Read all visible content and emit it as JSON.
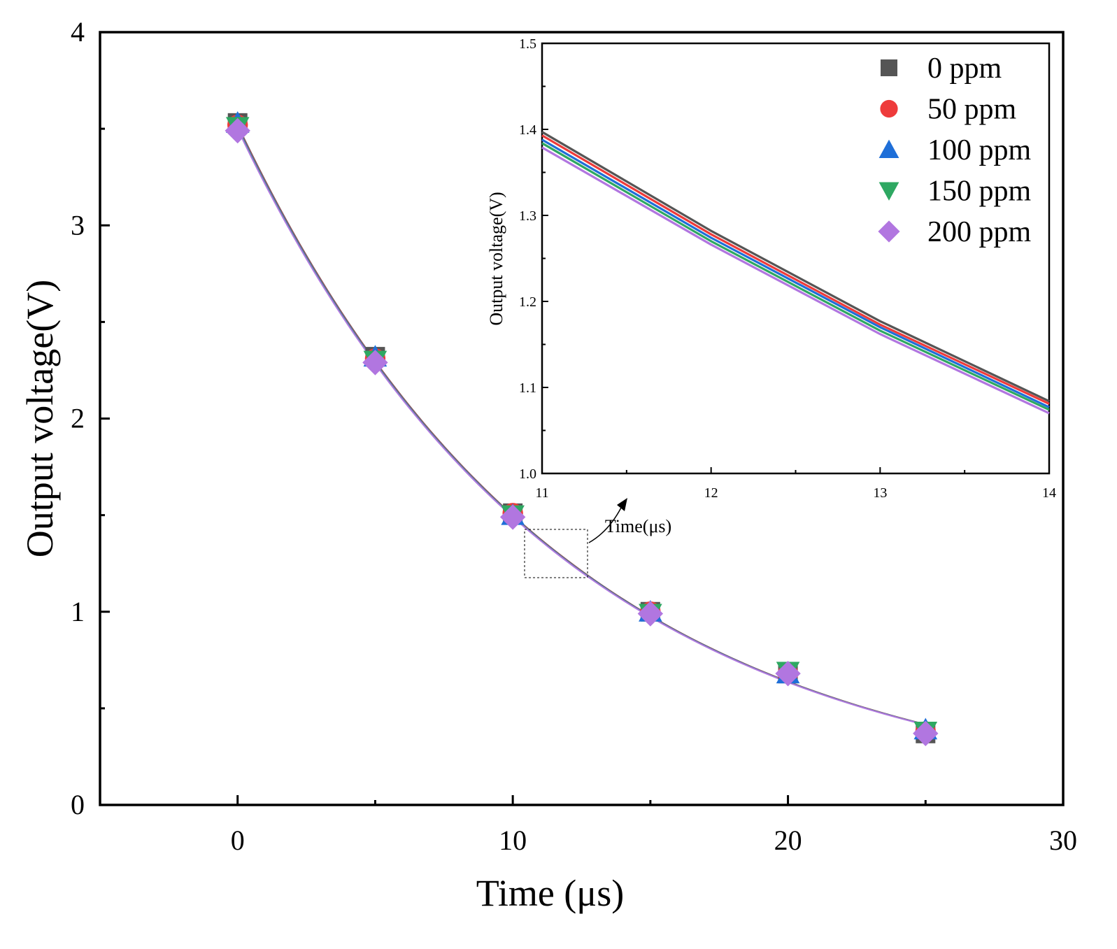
{
  "chart_data": [
    {
      "type": "scatter",
      "title": "",
      "xlabel": "Time (μs)",
      "ylabel": "Output voltage(V)",
      "xlim": [
        -5,
        30
      ],
      "ylim": [
        0,
        4
      ],
      "xticks": [
        0,
        10,
        20,
        30
      ],
      "yticks": [
        0,
        1,
        2,
        3,
        4
      ],
      "x_tick_labels": [
        "0",
        "10",
        "20",
        "30"
      ],
      "y_tick_labels": [
        "0",
        "1",
        "2",
        "3",
        "4"
      ],
      "grid": false,
      "fit_curve": {
        "amplitude": 3.52,
        "tau_us": 11.72
      },
      "series": [
        {
          "name": "0 ppm",
          "color": "#555555",
          "marker": "square",
          "x": [
            0,
            5,
            10,
            15,
            20,
            25
          ],
          "y": [
            3.53,
            2.32,
            1.51,
            1.0,
            0.68,
            0.37
          ]
        },
        {
          "name": "50 ppm",
          "color": "#ee3b3b",
          "marker": "circle",
          "x": [
            0,
            5,
            10,
            15,
            20,
            25
          ],
          "y": [
            3.52,
            2.31,
            1.51,
            1.0,
            0.68,
            0.38
          ]
        },
        {
          "name": "100 ppm",
          "color": "#1f6fd8",
          "marker": "triangle-up",
          "x": [
            0,
            5,
            10,
            15,
            20,
            25
          ],
          "y": [
            3.53,
            2.32,
            1.5,
            1.0,
            0.68,
            0.39
          ]
        },
        {
          "name": "150 ppm",
          "color": "#2ea862",
          "marker": "triangle-down",
          "x": [
            0,
            5,
            10,
            15,
            20,
            25
          ],
          "y": [
            3.51,
            2.3,
            1.5,
            0.99,
            0.69,
            0.38
          ]
        },
        {
          "name": "200 ppm",
          "color": "#b176e0",
          "marker": "diamond",
          "x": [
            0,
            5,
            10,
            15,
            20,
            25
          ],
          "y": [
            3.49,
            2.29,
            1.49,
            0.99,
            0.68,
            0.37
          ]
        }
      ]
    },
    {
      "type": "line",
      "title": "",
      "xlabel": "Time(μs)",
      "ylabel": "Output voltage(V)",
      "xlim": [
        11,
        14
      ],
      "ylim": [
        1.0,
        1.5
      ],
      "xticks": [
        11,
        12,
        13,
        14
      ],
      "yticks": [
        1.0,
        1.1,
        1.2,
        1.3,
        1.4,
        1.5
      ],
      "x_tick_labels": [
        "11",
        "12",
        "13",
        "14"
      ],
      "y_tick_labels": [
        "1.0",
        "1.1",
        "1.2",
        "1.3",
        "1.4",
        "1.5"
      ],
      "grid": false,
      "legend": "top-right",
      "series": [
        {
          "name": "0 ppm",
          "color": "#555555",
          "x": [
            11,
            12,
            13,
            14
          ],
          "y": [
            1.397,
            1.282,
            1.177,
            1.084
          ]
        },
        {
          "name": "50 ppm",
          "color": "#ee3b3b",
          "x": [
            11,
            12,
            13,
            14
          ],
          "y": [
            1.393,
            1.278,
            1.173,
            1.081
          ]
        },
        {
          "name": "100 ppm",
          "color": "#1f6fd8",
          "x": [
            11,
            12,
            13,
            14
          ],
          "y": [
            1.388,
            1.274,
            1.17,
            1.077
          ]
        },
        {
          "name": "150 ppm",
          "color": "#2ea862",
          "x": [
            11,
            12,
            13,
            14
          ],
          "y": [
            1.384,
            1.27,
            1.166,
            1.074
          ]
        },
        {
          "name": "200 ppm",
          "color": "#b176e0",
          "x": [
            11,
            12,
            13,
            14
          ],
          "y": [
            1.379,
            1.266,
            1.162,
            1.07
          ]
        }
      ]
    }
  ]
}
